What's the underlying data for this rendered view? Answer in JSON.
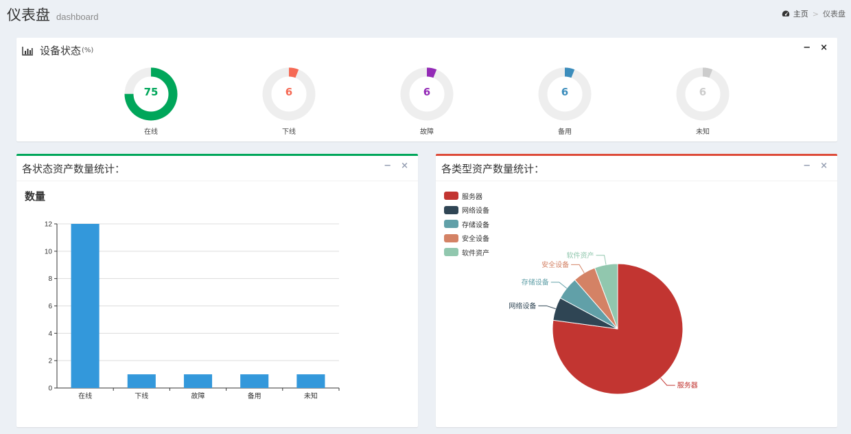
{
  "header": {
    "title": "仪表盘",
    "subtitle": "dashboard"
  },
  "breadcrumb": {
    "home": "主页",
    "separator": ">",
    "current": "仪表盘"
  },
  "device_status": {
    "title": "设备状态",
    "unit": "(%)",
    "tools": {
      "minimize": "−",
      "close": "×"
    },
    "gauges": [
      {
        "label": "在线",
        "value": "75",
        "percent": 75,
        "color": "#00a65a"
      },
      {
        "label": "下线",
        "value": "6",
        "percent": 6,
        "color": "#f56954"
      },
      {
        "label": "故障",
        "value": "6",
        "percent": 6,
        "color": "#932ab6"
      },
      {
        "label": "备用",
        "value": "6",
        "percent": 6,
        "color": "#3c8dbc"
      },
      {
        "label": "未知",
        "value": "6",
        "percent": 6,
        "color": "#cccccc"
      }
    ]
  },
  "status_panel": {
    "title": "各状态资产数量统计：",
    "tools": {
      "minimize": "−",
      "close": "×"
    }
  },
  "type_panel": {
    "title": "各类型资产数量统计：",
    "tools": {
      "minimize": "−",
      "close": "×"
    }
  },
  "chart_data": [
    {
      "type": "bar",
      "title": "数量",
      "categories": [
        "在线",
        "下线",
        "故障",
        "备用",
        "未知"
      ],
      "values": [
        12,
        1,
        1,
        1,
        1
      ],
      "ylim": [
        0,
        12
      ],
      "yticks": [
        0,
        2,
        4,
        6,
        8,
        10,
        12
      ],
      "grid": true,
      "color": "#3398db"
    },
    {
      "type": "pie",
      "legend_position": "top-left",
      "slices": [
        {
          "name": "服务器",
          "value": 27,
          "color": "#c23531"
        },
        {
          "name": "网络设备",
          "value": 2,
          "color": "#2f4554"
        },
        {
          "name": "存储设备",
          "value": 2,
          "color": "#61a0a8"
        },
        {
          "name": "安全设备",
          "value": 2,
          "color": "#d48265"
        },
        {
          "name": "软件资产",
          "value": 2,
          "color": "#91c7ae"
        }
      ]
    }
  ]
}
